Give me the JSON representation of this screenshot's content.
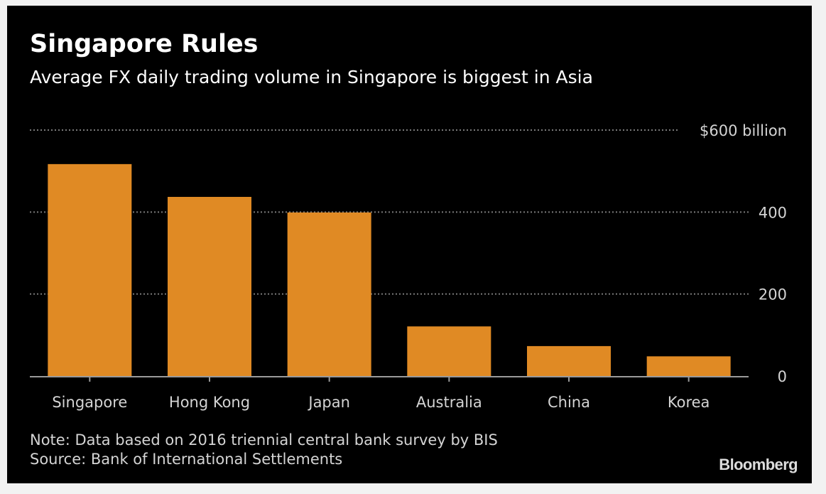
{
  "title": "Singapore Rules",
  "subtitle": "Average FX daily trading volume in Singapore is biggest in Asia",
  "note": "Note: Data based on 2016 triennial central bank survey by BIS",
  "source": "Source: Bank of International Settlements",
  "brand": "Bloomberg",
  "colors": {
    "background": "#000000",
    "bar": "#e08a24",
    "text": "#ffffff",
    "muted_text": "#d4d4d4",
    "grid": "#7a7a7a",
    "axis": "#9a9a9a"
  },
  "chart_data": {
    "type": "bar",
    "title": "Singapore Rules",
    "subtitle": "Average FX daily trading volume in Singapore is biggest in Asia",
    "categories": [
      "Singapore",
      "Hong Kong",
      "Japan",
      "Australia",
      "China",
      "Korea"
    ],
    "values": [
      517,
      437,
      399,
      121,
      73,
      48
    ],
    "unit": "billion",
    "ylim": [
      0,
      600
    ],
    "yticks": [
      0,
      200,
      400,
      600
    ],
    "ytick_labels": [
      "0",
      "200",
      "400",
      "$600 billion"
    ],
    "grid": true,
    "grid_style": "dotted",
    "legend": "none"
  }
}
